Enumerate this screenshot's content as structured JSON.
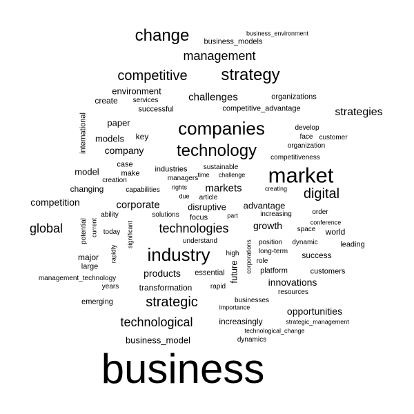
{
  "word_cloud": {
    "words": [
      "business",
      "market",
      "companies",
      "industry",
      "technology",
      "change",
      "strategy",
      "digital",
      "competitive",
      "strategic",
      "technological",
      "technologies",
      "global",
      "management",
      "strategies",
      "corporate",
      "markets",
      "challenges",
      "opportunities",
      "innovations",
      "products",
      "competition",
      "company",
      "growth",
      "environment",
      "business_models",
      "paper",
      "models",
      "increasingly",
      "advantage",
      "changing",
      "business_model",
      "transformation",
      "disruptive",
      "create",
      "model",
      "international",
      "future",
      "success",
      "major",
      "large",
      "emerging",
      "organizations",
      "competitive_advantage",
      "key",
      "world",
      "customers",
      "platform",
      "focus",
      "industries",
      "case",
      "develop",
      "business_environment",
      "businesses",
      "increasing",
      "resources",
      "successful",
      "services",
      "dynamics",
      "leading",
      "position",
      "long-term",
      "understand",
      "dynamic",
      "competitiveness",
      "face",
      "management_technology",
      "years",
      "sustainable",
      "managers",
      "rapid",
      "strategic_management",
      "technological_change",
      "conference",
      "order",
      "space",
      "organization",
      "essential",
      "make",
      "role",
      "high",
      "creation",
      "capabilities",
      "creating",
      "solutions",
      "ability",
      "today",
      "challenge",
      "importance",
      "time",
      "article",
      "rights",
      "due",
      "customer",
      "part",
      "current",
      "potential",
      "significant",
      "rapidly",
      "corporations"
    ]
  }
}
